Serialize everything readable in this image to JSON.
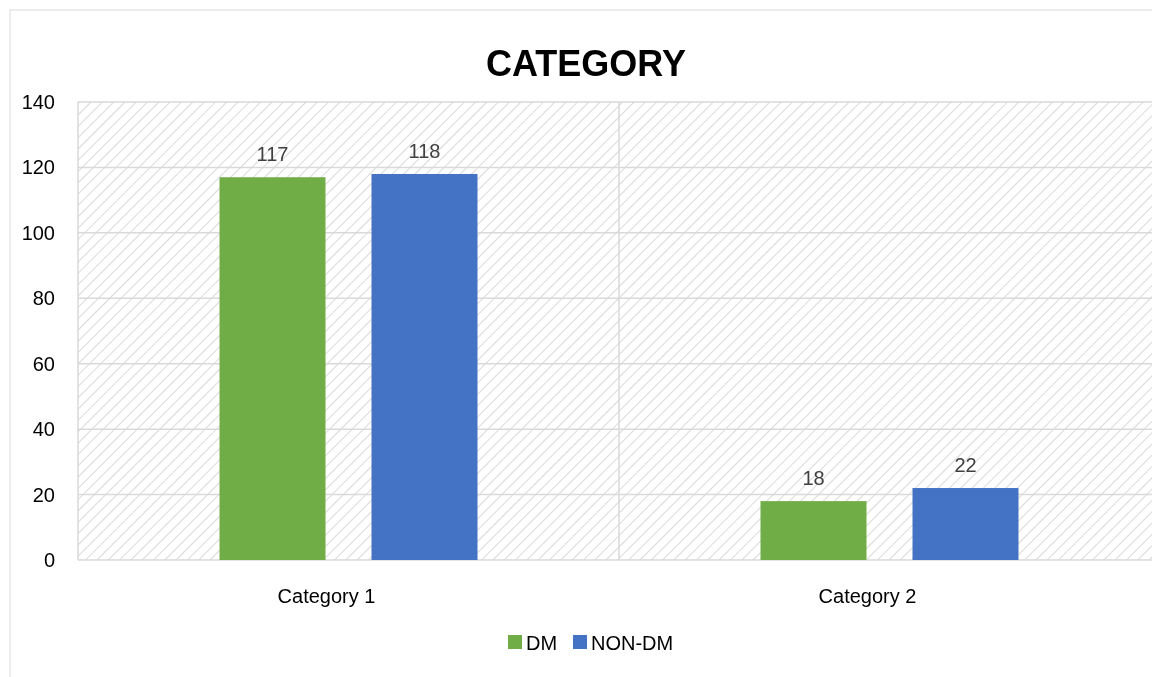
{
  "chart_data": {
    "type": "bar",
    "title": "CATEGORY",
    "categories": [
      "Category 1",
      "Category 2"
    ],
    "series": [
      {
        "name": "DM",
        "color": "#70ad47",
        "values": [
          117,
          18
        ]
      },
      {
        "name": "NON-DM",
        "color": "#4472c4",
        "values": [
          118,
          22
        ]
      }
    ],
    "ylim": [
      0,
      140
    ],
    "yticks": [
      0,
      20,
      40,
      60,
      80,
      100,
      120,
      140
    ],
    "grid": true,
    "legend": "bottom",
    "data_labels": true
  }
}
